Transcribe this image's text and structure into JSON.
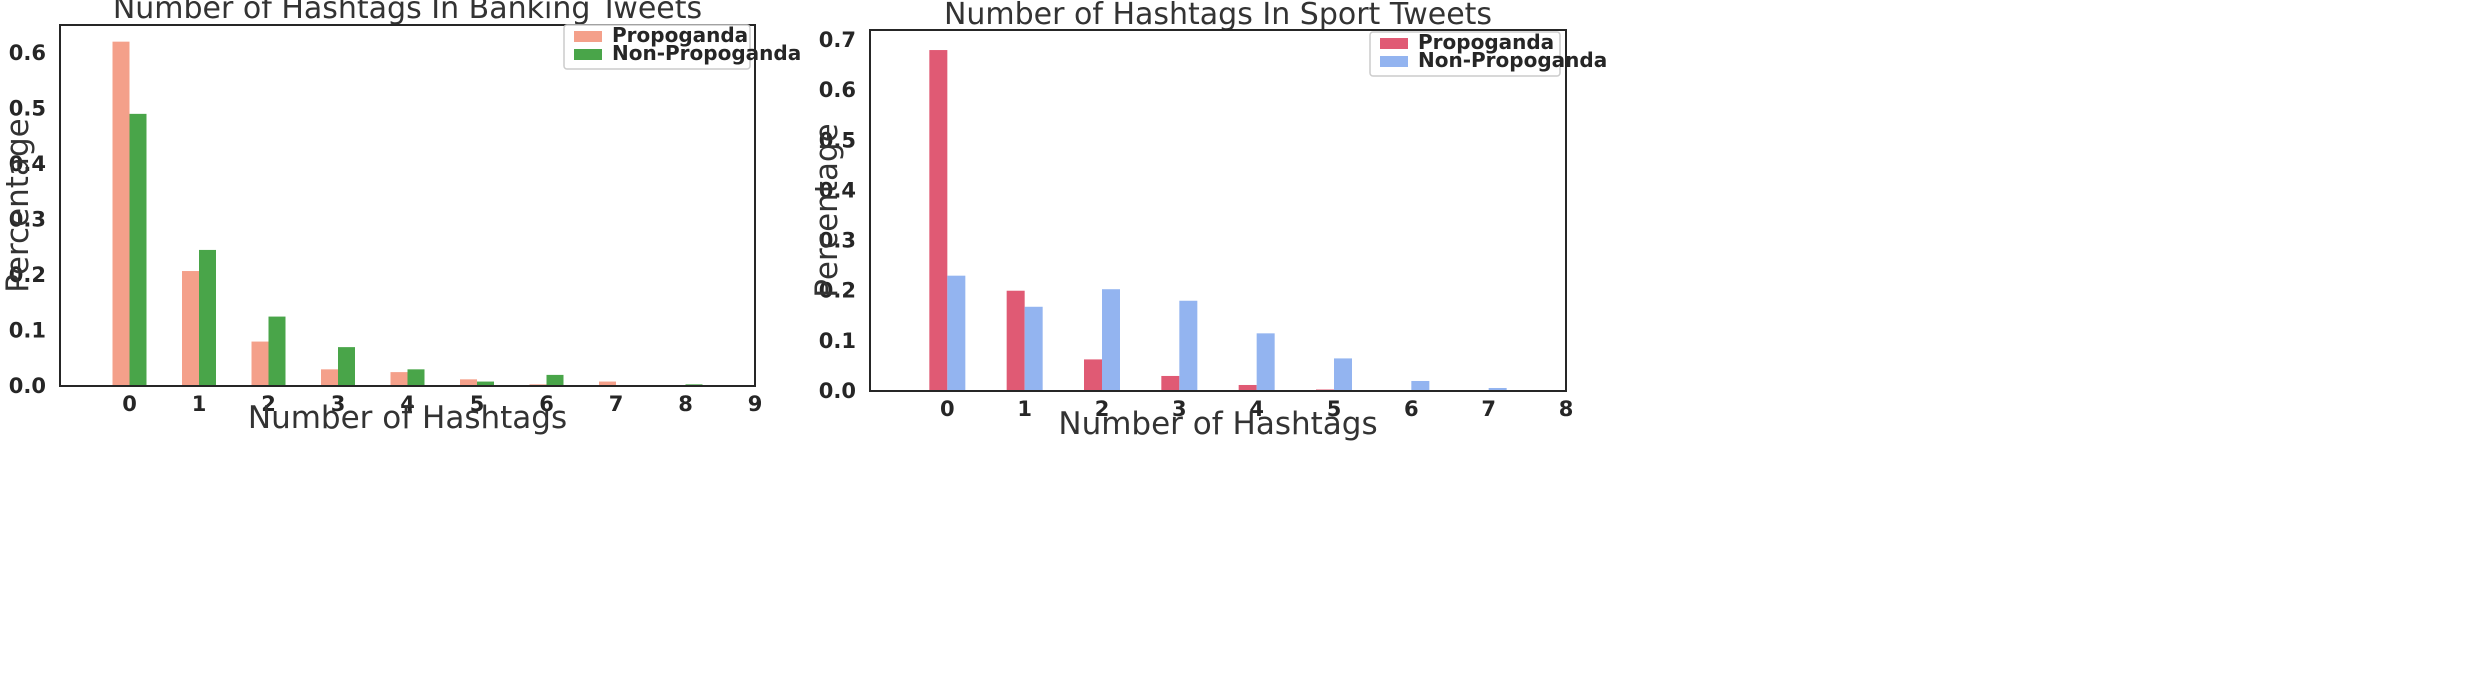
{
  "chart_data": [
    {
      "type": "bar",
      "title": "Number of Hashtags In Banking Tweets",
      "xlabel": "Number of Hashtags",
      "ylabel": "Percentage",
      "x_ticks": [
        "0",
        "1",
        "2",
        "3",
        "4",
        "5",
        "6",
        "7",
        "8",
        "9"
      ],
      "y_ticks": [
        "0.0",
        "0.1",
        "0.2",
        "0.3",
        "0.4",
        "0.5",
        "0.6"
      ],
      "xlim": [
        -1,
        9
      ],
      "ylim": [
        0,
        0.65
      ],
      "grid": false,
      "legend_position": "top-right",
      "categories": [
        0,
        1,
        2,
        3,
        4,
        5,
        6,
        7,
        8
      ],
      "series": [
        {
          "name": "Propoganda",
          "color": "#f4a08a",
          "values": [
            0.62,
            0.207,
            0.08,
            0.03,
            0.025,
            0.012,
            0.003,
            0.008,
            0.0
          ]
        },
        {
          "name": "Non-Propoganda",
          "color": "#49a549",
          "values": [
            0.49,
            0.245,
            0.125,
            0.07,
            0.03,
            0.008,
            0.02,
            0.0,
            0.003
          ]
        }
      ]
    },
    {
      "type": "bar",
      "title": "Number of Hashtags In Sport Tweets",
      "xlabel": "Number of Hashtags",
      "ylabel": "Percentage",
      "x_ticks": [
        "0",
        "1",
        "2",
        "3",
        "4",
        "5",
        "6",
        "7",
        "8"
      ],
      "y_ticks": [
        "0.0",
        "0.1",
        "0.2",
        "0.3",
        "0.4",
        "0.5",
        "0.6",
        "0.7"
      ],
      "xlim": [
        -1,
        8
      ],
      "ylim": [
        0,
        0.72
      ],
      "grid": false,
      "legend_position": "top-right",
      "categories": [
        0,
        1,
        2,
        3,
        4,
        5,
        6,
        7
      ],
      "series": [
        {
          "name": "Propoganda",
          "color": "#e05a74",
          "values": [
            0.68,
            0.2,
            0.063,
            0.03,
            0.012,
            0.003,
            0.0,
            0.0
          ]
        },
        {
          "name": "Non-Propoganda",
          "color": "#93b4f0",
          "values": [
            0.23,
            0.168,
            0.203,
            0.18,
            0.115,
            0.065,
            0.02,
            0.006
          ]
        }
      ]
    }
  ]
}
